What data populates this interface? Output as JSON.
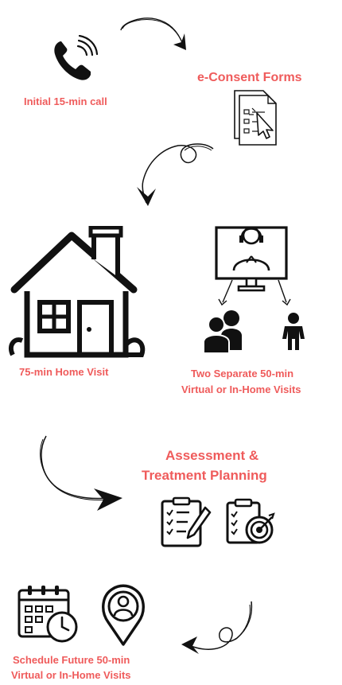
{
  "steps": {
    "initial_call": "Initial 15-min call",
    "econsent": "e-Consent Forms",
    "home_visit": "75-min Home Visit",
    "separate_visits_line1": "Two Separate 50-min",
    "separate_visits_line2": "Virtual or In-Home Visits",
    "assessment_line1": "Assessment &",
    "assessment_line2": "Treatment Planning",
    "schedule_line1": "Schedule Future 50-min",
    "schedule_line2": "Virtual or In-Home Visits"
  },
  "colors": {
    "accent": "#ef5b5b",
    "ink": "#111111"
  },
  "icons": [
    "phone-icon",
    "forms-icon",
    "house-icon",
    "video-call-icon",
    "adults-icon",
    "child-icon",
    "checklist-icon",
    "target-plan-icon",
    "calendar-clock-icon",
    "location-pin-icon"
  ]
}
